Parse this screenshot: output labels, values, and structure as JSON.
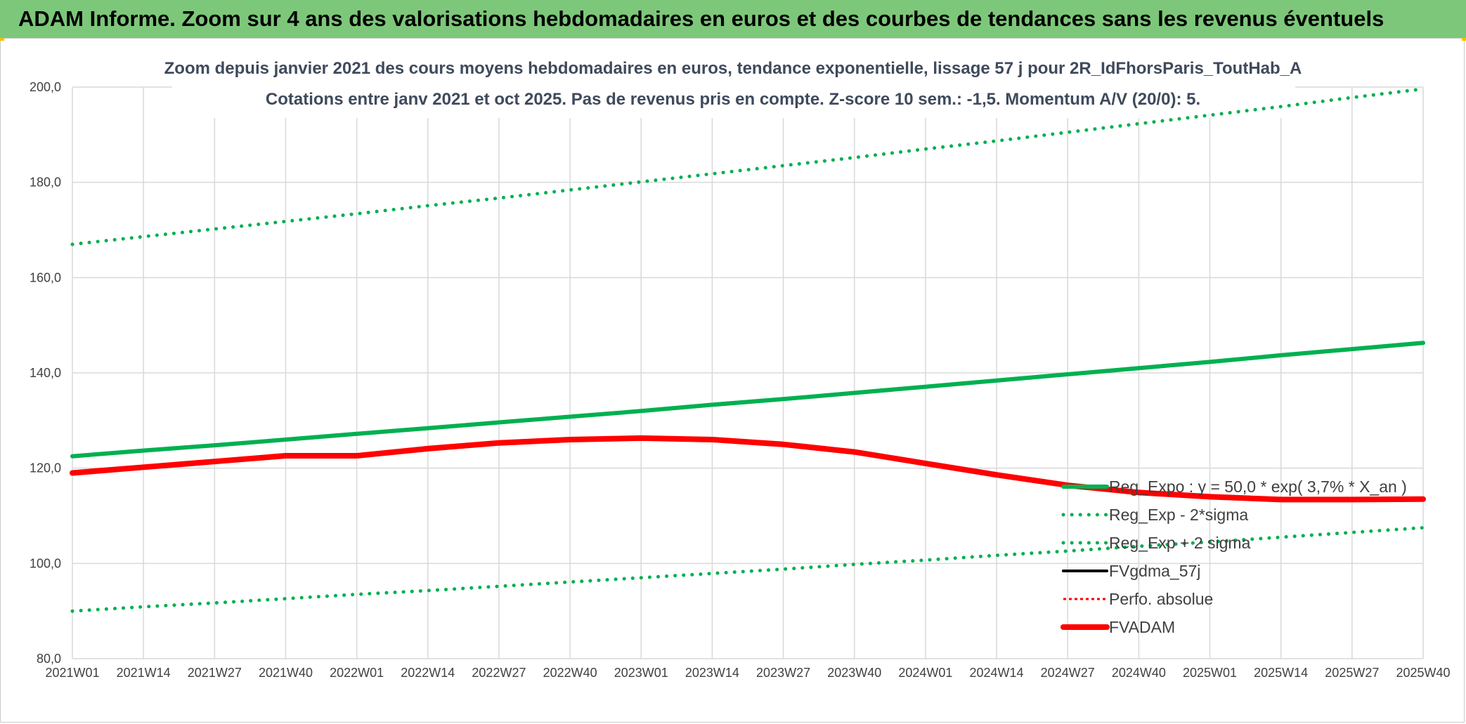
{
  "header": {
    "title": "ADAM Informe. Zoom sur 4 ans des valorisations hebdomadaires en euros et des courbes de tendances sans les revenus éventuels"
  },
  "colors": {
    "banner": "#7dc77a",
    "regression": "#00b050",
    "band": "#00b050",
    "fvgdma": "#000000",
    "perfo": "#ff0000",
    "fvadam": "#ff0000",
    "grid": "#d9d9d9"
  },
  "chart_data": {
    "type": "line",
    "title": "Zoom depuis janvier 2021 des cours moyens hebdomadaires en euros, tendance exponentielle, lissage 57 j pour 2R_IdFhorsParis_ToutHab_A",
    "subtitle": "Cotations entre janv 2021 et oct 2025. Pas de revenus pris en compte. Z-score 10 sem.: -1,5. Momentum A/V (20/0): 5.",
    "xlabel": "",
    "ylabel": "",
    "ylim": [
      80,
      200
    ],
    "yticks": [
      "80,0",
      "100,0",
      "120,0",
      "140,0",
      "160,0",
      "180,0",
      "200,0"
    ],
    "x_ticks": [
      "2021W01",
      "2021W14",
      "2021W27",
      "2021W40",
      "2022W01",
      "2022W14",
      "2022W27",
      "2022W40",
      "2023W01",
      "2023W14",
      "2023W27",
      "2023W40",
      "2024W01",
      "2024W14",
      "2024W27",
      "2024W40",
      "2025W01",
      "2025W14",
      "2025W27",
      "2025W40"
    ],
    "grid": true,
    "legend_position": "right",
    "series": [
      {
        "name": "Reg_Expo : y = 50,0 * exp( 3,7% *  X_an )",
        "style": "solid",
        "values": [
          122.5,
          123.7,
          124.8,
          126.0,
          127.2,
          128.4,
          129.6,
          130.8,
          132.0,
          133.3,
          134.5,
          135.8,
          137.1,
          138.4,
          139.7,
          141.0,
          142.3,
          143.7,
          145.0,
          146.3
        ]
      },
      {
        "name": "Reg_Exp - 2*sigma",
        "style": "dotted",
        "values": [
          90.0,
          90.9,
          91.7,
          92.6,
          93.5,
          94.3,
          95.2,
          96.1,
          97.0,
          97.9,
          98.8,
          99.8,
          100.7,
          101.7,
          102.6,
          103.6,
          104.5,
          105.5,
          106.5,
          107.5
        ]
      },
      {
        "name": "Reg_Exp + 2 sigma",
        "style": "dotted",
        "values": [
          167.0,
          168.6,
          170.2,
          171.8,
          173.4,
          175.1,
          176.7,
          178.4,
          180.1,
          181.8,
          183.5,
          185.2,
          187.0,
          188.7,
          190.5,
          192.3,
          194.1,
          195.9,
          197.8,
          199.6
        ]
      },
      {
        "name": "FVgdma_57j",
        "style": "solid-thin",
        "values": [
          119.0,
          120.2,
          121.4,
          122.6,
          122.6,
          124.1,
          125.3,
          126.0,
          126.3,
          126.0,
          125.0,
          123.4,
          121.0,
          118.6,
          116.4,
          114.9,
          114.0,
          113.4,
          113.4,
          113.5
        ]
      },
      {
        "name": "Perfo. absolue",
        "style": "dotted",
        "values": [
          119.0,
          120.2,
          121.4,
          122.6,
          122.6,
          124.1,
          125.3,
          126.0,
          126.3,
          126.0,
          125.0,
          123.4,
          121.0,
          118.6,
          116.4,
          114.9,
          114.0,
          113.4,
          113.4,
          113.5
        ]
      },
      {
        "name": "FVADAM",
        "style": "solid-thick",
        "values": [
          119.0,
          120.2,
          121.4,
          122.6,
          122.6,
          124.1,
          125.3,
          126.0,
          126.3,
          126.0,
          125.0,
          123.4,
          121.0,
          118.6,
          116.4,
          114.9,
          114.0,
          113.4,
          113.4,
          113.5
        ]
      }
    ]
  }
}
